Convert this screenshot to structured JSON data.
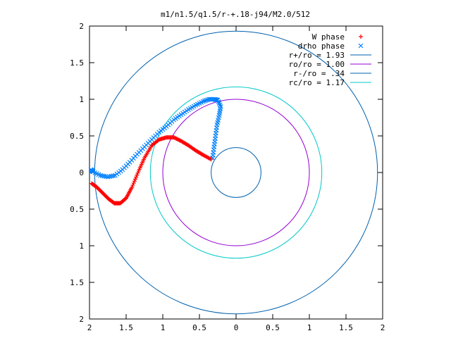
{
  "chart_data": {
    "type": "scatter",
    "title": "m1/n1.5/q1.5/r-+.18-j94/M2.0/512",
    "xlabel": "",
    "ylabel": "",
    "xlim": [
      -2,
      2
    ],
    "ylim": [
      -2,
      2
    ],
    "grid": false,
    "legend_position": "top-right",
    "x_ticks": [
      {
        "value": -2,
        "label": "2"
      },
      {
        "value": -1.5,
        "label": "1.5"
      },
      {
        "value": -1,
        "label": "1"
      },
      {
        "value": -0.5,
        "label": "0.5"
      },
      {
        "value": 0,
        "label": "0"
      },
      {
        "value": 0.5,
        "label": "0.5"
      },
      {
        "value": 1,
        "label": "1"
      },
      {
        "value": 1.5,
        "label": "1.5"
      },
      {
        "value": 2,
        "label": "2"
      }
    ],
    "y_ticks": [
      {
        "value": 2,
        "label": "2"
      },
      {
        "value": 1.5,
        "label": "1.5"
      },
      {
        "value": 1,
        "label": "1"
      },
      {
        "value": 0.5,
        "label": "0.5"
      },
      {
        "value": 0,
        "label": "0"
      },
      {
        "value": -0.5,
        "label": "0.5"
      },
      {
        "value": -1,
        "label": "1"
      },
      {
        "value": -1.5,
        "label": "1.5"
      },
      {
        "value": -2,
        "label": "2"
      }
    ],
    "series": [
      {
        "name": "W phase",
        "kind": "points",
        "marker": "plus",
        "color": "#ff0000",
        "x": [
          -0.34,
          -0.45,
          -0.55,
          -0.65,
          -0.75,
          -0.85,
          -0.95,
          -1.05,
          -1.15,
          -1.25,
          -1.33,
          -1.42,
          -1.5,
          -1.58,
          -1.66,
          -1.74,
          -1.82,
          -1.9,
          -1.97
        ],
        "y": [
          0.18,
          0.24,
          0.3,
          0.37,
          0.43,
          0.48,
          0.48,
          0.45,
          0.37,
          0.2,
          0.02,
          -0.2,
          -0.35,
          -0.42,
          -0.42,
          -0.36,
          -0.28,
          -0.2,
          -0.15
        ]
      },
      {
        "name": "drho phase",
        "kind": "points",
        "marker": "x",
        "color": "#0080ff",
        "x": [
          -0.32,
          -0.3,
          -0.28,
          -0.26,
          -0.23,
          -0.21,
          -0.25,
          -0.3,
          -0.37,
          -0.45,
          -0.55,
          -0.65,
          -0.75,
          -0.85,
          -0.95,
          -1.05,
          -1.15,
          -1.25,
          -1.35,
          -1.45,
          -1.55,
          -1.65,
          -1.75,
          -1.85,
          -1.95,
          -1.98
        ],
        "y": [
          0.2,
          0.35,
          0.5,
          0.65,
          0.78,
          0.9,
          0.99,
          1.0,
          1.0,
          0.97,
          0.92,
          0.86,
          0.79,
          0.72,
          0.63,
          0.55,
          0.45,
          0.35,
          0.25,
          0.14,
          0.04,
          -0.04,
          -0.06,
          -0.04,
          0.01,
          0.04
        ]
      },
      {
        "name": "r+/ro = 1.93",
        "kind": "circle",
        "radius": 1.93,
        "color": "#0060ad"
      },
      {
        "name": "ro/ro = 1.00",
        "kind": "circle",
        "radius": 1.0,
        "color": "#9400d3"
      },
      {
        "name": "r-/ro = .34",
        "kind": "circle",
        "radius": 0.34,
        "color": "#0060ad"
      },
      {
        "name": "rc/ro = 1.17",
        "kind": "circle",
        "radius": 1.17,
        "color": "#00c8c8"
      }
    ]
  }
}
